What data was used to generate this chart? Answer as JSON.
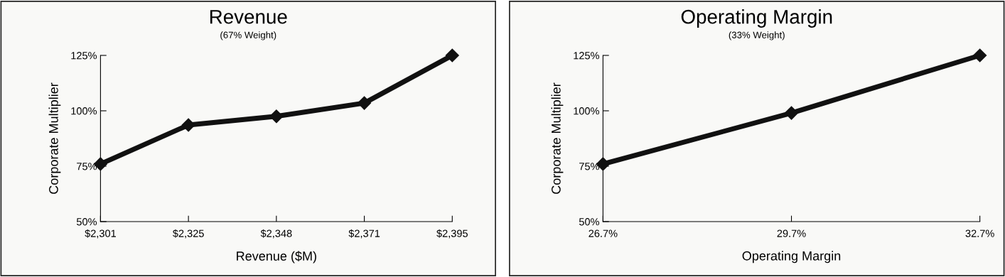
{
  "chart_data": [
    {
      "type": "line",
      "title": "Revenue",
      "subtitle": "(67% Weight)",
      "xlabel": "Revenue ($M)",
      "ylabel": "Corporate Multiplier",
      "categories": [
        "$2,301",
        "$2,325",
        "$2,348",
        "$2,371",
        "$2,395"
      ],
      "series": [
        {
          "color": "#111111",
          "values": [
            76,
            93.6,
            97.5,
            103.5,
            125
          ]
        }
      ],
      "ylim": [
        50,
        125
      ],
      "yticks": [
        {
          "value": 50,
          "label": "50%"
        },
        {
          "value": 75,
          "label": "75%"
        },
        {
          "value": 100,
          "label": "100%"
        },
        {
          "value": 125,
          "label": "125%"
        }
      ],
      "marker": "diamond",
      "line_style": "solid",
      "grid": false,
      "legend": false
    },
    {
      "type": "line",
      "title": "Operating Margin",
      "subtitle": "(33% Weight)",
      "xlabel": "Operating Margin",
      "ylabel": "Corporate Multiplier",
      "categories": [
        "26.7%",
        "29.7%",
        "32.7%"
      ],
      "series": [
        {
          "color": "#111111",
          "values": [
            76,
            99,
            125
          ]
        }
      ],
      "ylim": [
        50,
        125
      ],
      "yticks": [
        {
          "value": 50,
          "label": "50%"
        },
        {
          "value": 75,
          "label": "75%"
        },
        {
          "value": 100,
          "label": "100%"
        },
        {
          "value": 125,
          "label": "125%"
        }
      ],
      "marker": "diamond",
      "line_style": "solid",
      "grid": false,
      "legend": false
    }
  ]
}
